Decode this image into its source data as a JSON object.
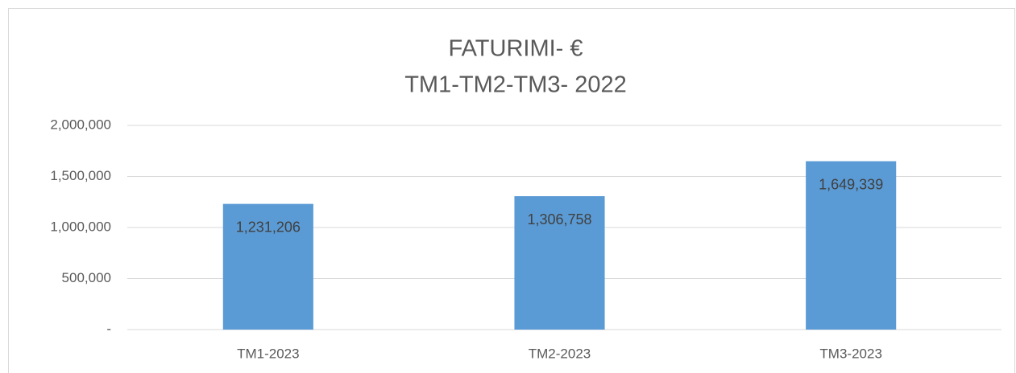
{
  "chart_data": {
    "type": "bar",
    "title": "FATURIMI- €",
    "subtitle": "TM1-TM2-TM3- 2022",
    "categories": [
      "TM1-2023",
      "TM2-2023",
      "TM3-2023"
    ],
    "values": [
      1231206,
      1306758,
      1649339
    ],
    "value_labels": [
      "1,231,206",
      "1,306,758",
      "1,649,339"
    ],
    "color": "#5b9bd5",
    "ylim": [
      0,
      2000000
    ],
    "yticks": [
      {
        "value": 0,
        "label": "-"
      },
      {
        "value": 500000,
        "label": "500,000"
      },
      {
        "value": 1000000,
        "label": "1,000,000"
      },
      {
        "value": 1500000,
        "label": "1,500,000"
      },
      {
        "value": 2000000,
        "label": "2,000,000"
      }
    ],
    "grid": true
  }
}
